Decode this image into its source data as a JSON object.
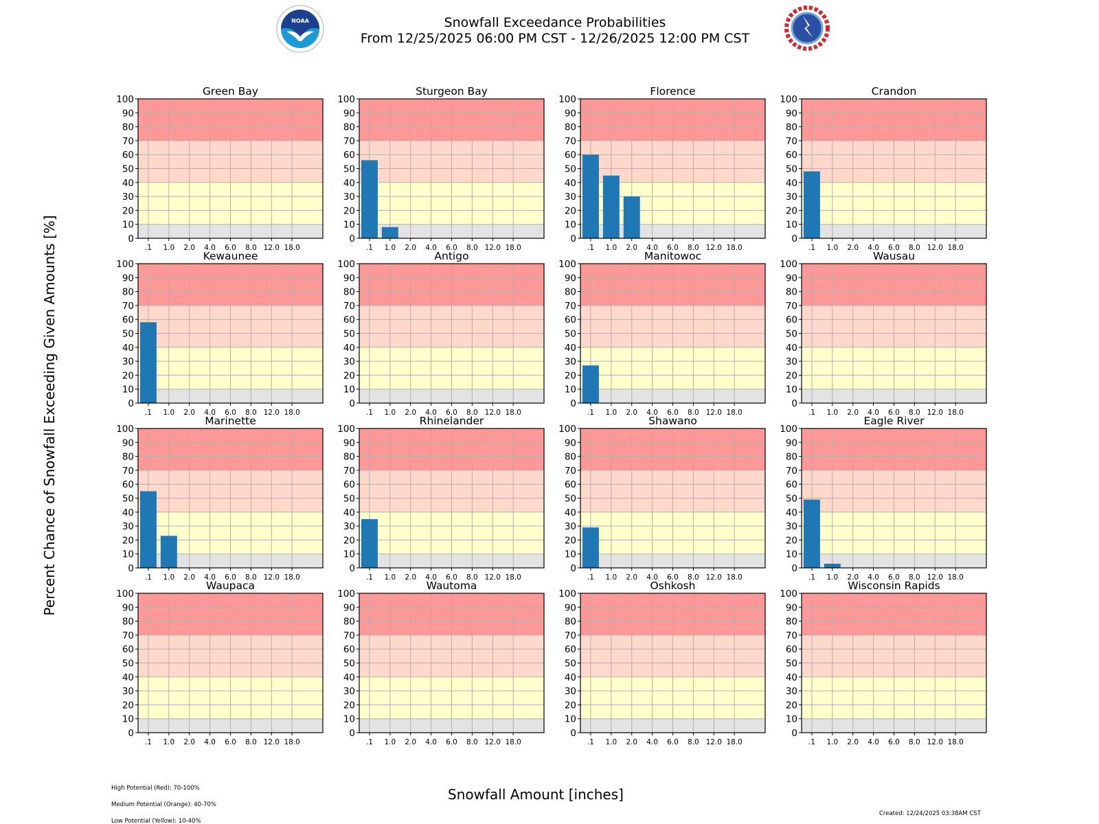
{
  "header": {
    "title_line1": "Snowfall Exceedance Probabilities",
    "title_line2": "From 12/25/2025 06:00 PM CST - 12/26/2025 12:00 PM CST",
    "left_logo": "noaa-logo-icon",
    "right_logo": "nws-logo-icon",
    "left_logo_text": "NOAA",
    "right_logo_text": "NATIONAL WEATHER SERVICE"
  },
  "colors": {
    "bar": "#1f77b4",
    "high_band": "#ff9896",
    "medium_band": "#ffd8cc",
    "low_band": "#ffffcc",
    "none_band": "#e3e3e3",
    "grid": "#b0b0b0"
  },
  "footer": {
    "legend_high": "High Potential (Red): 70-100%",
    "legend_medium": "Medium Potential (Orange): 40-70%",
    "legend_low": "Low Potential (Yellow): 10-40%",
    "created": "Created: 12/24/2025 03:38AM CST"
  },
  "chart_data": {
    "type": "bar",
    "title": "Snowfall Exceedance Probabilities",
    "subtitle": "From 12/25/2025 06:00 PM CST - 12/26/2025 12:00 PM CST",
    "xlabel": "Snowfall Amount [inches]",
    "ylabel": "Percent Chance of Snowfall Exceeding Given Amounts [%]",
    "categories": [
      ".1",
      "1.0",
      "2.0",
      "4.0",
      "6.0",
      "8.0",
      "12.0",
      "18.0"
    ],
    "ylim": [
      0,
      100
    ],
    "yticks": [
      0,
      10,
      20,
      30,
      40,
      50,
      60,
      70,
      80,
      90,
      100
    ],
    "grid": true,
    "bands": [
      {
        "name": "None",
        "from": 0,
        "to": 10,
        "color": "#e3e3e3"
      },
      {
        "name": "Low Potential (Yellow)",
        "from": 10,
        "to": 40,
        "color": "#ffffcc"
      },
      {
        "name": "Medium Potential (Orange)",
        "from": 40,
        "to": 70,
        "color": "#ffd8cc"
      },
      {
        "name": "High Potential (Red)",
        "from": 70,
        "to": 100,
        "color": "#ff9896"
      }
    ],
    "panels": [
      {
        "name": "Green Bay",
        "values": [
          0,
          0,
          0,
          0,
          0,
          0,
          0,
          0
        ]
      },
      {
        "name": "Sturgeon Bay",
        "values": [
          56,
          8,
          0,
          0,
          0,
          0,
          0,
          0
        ]
      },
      {
        "name": "Florence",
        "values": [
          60,
          45,
          30,
          0,
          0,
          0,
          0,
          0
        ]
      },
      {
        "name": "Crandon",
        "values": [
          48,
          0,
          0,
          0,
          0,
          0,
          0,
          0
        ]
      },
      {
        "name": "Kewaunee",
        "values": [
          58,
          0,
          0,
          0,
          0,
          0,
          0,
          0
        ]
      },
      {
        "name": "Antigo",
        "values": [
          0,
          0,
          0,
          0,
          0,
          0,
          0,
          0
        ]
      },
      {
        "name": "Manitowoc",
        "values": [
          27,
          0,
          0,
          0,
          0,
          0,
          0,
          0
        ]
      },
      {
        "name": "Wausau",
        "values": [
          0,
          0,
          0,
          0,
          0,
          0,
          0,
          0
        ]
      },
      {
        "name": "Marinette",
        "values": [
          55,
          23,
          0,
          0,
          0,
          0,
          0,
          0
        ]
      },
      {
        "name": "Rhinelander",
        "values": [
          35,
          0,
          0,
          0,
          0,
          0,
          0,
          0
        ]
      },
      {
        "name": "Shawano",
        "values": [
          29,
          0,
          0,
          0,
          0,
          0,
          0,
          0
        ]
      },
      {
        "name": "Eagle River",
        "values": [
          49,
          3,
          0,
          0,
          0,
          0,
          0,
          0
        ]
      },
      {
        "name": "Waupaca",
        "values": [
          0,
          0,
          0,
          0,
          0,
          0,
          0,
          0
        ]
      },
      {
        "name": "Wautoma",
        "values": [
          0,
          0,
          0,
          0,
          0,
          0,
          0,
          0
        ]
      },
      {
        "name": "Oshkosh",
        "values": [
          0,
          0,
          0,
          0,
          0,
          0,
          0,
          0
        ]
      },
      {
        "name": "Wisconsin Rapids",
        "values": [
          0,
          0,
          0,
          0,
          0,
          0,
          0,
          0
        ]
      }
    ]
  }
}
